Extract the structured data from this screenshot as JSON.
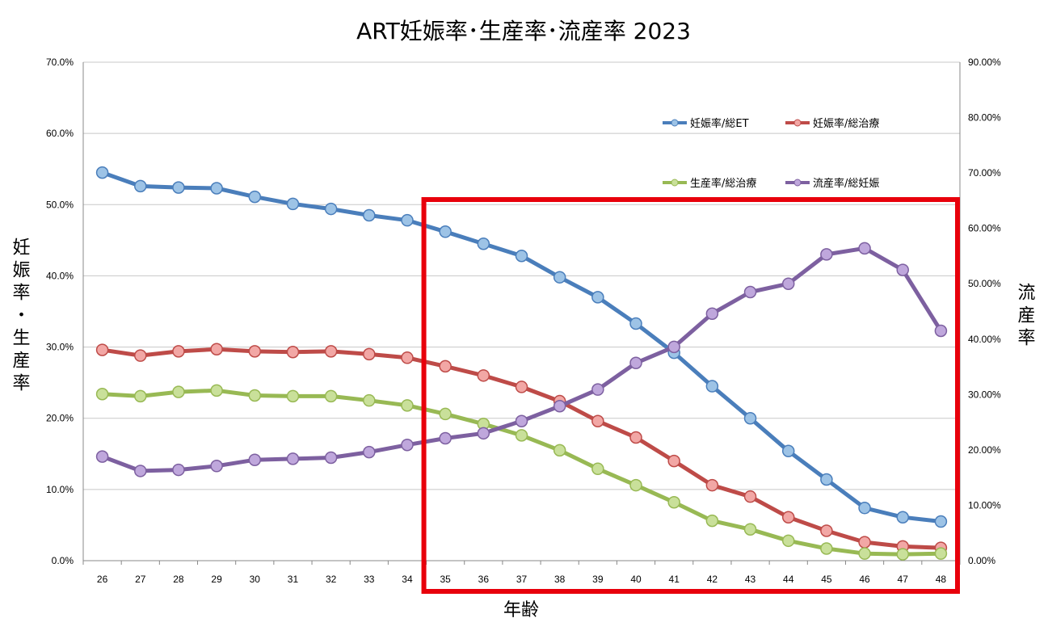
{
  "chart_data": {
    "type": "line",
    "title": "ART妊娠率･生産率･流産率 2023",
    "xlabel": "年齢",
    "ylabel_left": "妊娠率・生産率",
    "ylabel_right": "流産率",
    "x": [
      26,
      27,
      28,
      29,
      30,
      31,
      32,
      33,
      34,
      35,
      36,
      37,
      38,
      39,
      40,
      41,
      42,
      43,
      44,
      45,
      46,
      47,
      48
    ],
    "y_left_ticks": [
      "0.0%",
      "10.0%",
      "20.0%",
      "30.0%",
      "40.0%",
      "50.0%",
      "60.0%",
      "70.0%"
    ],
    "y_right_ticks": [
      "0.00%",
      "10.00%",
      "20.00%",
      "30.00%",
      "40.00%",
      "50.00%",
      "60.00%",
      "70.00%",
      "80.00%",
      "90.00%"
    ],
    "ylim_left": [
      0,
      70
    ],
    "ylim_right": [
      0,
      90
    ],
    "grid": true,
    "legend_position": "top-right",
    "highlight_range": [
      35,
      48
    ],
    "highlight_color": "#e8000b",
    "series": [
      {
        "name": "妊娠率/総ET",
        "axis": "left",
        "color": "#4a7ebb",
        "fill": "#9dc3e6",
        "values": [
          54.5,
          52.6,
          52.4,
          52.3,
          51.1,
          50.1,
          49.4,
          48.5,
          47.8,
          46.2,
          44.5,
          42.8,
          39.8,
          37.0,
          33.3,
          29.2,
          24.5,
          20.0,
          15.4,
          11.4,
          7.4,
          6.1,
          5.5
        ]
      },
      {
        "name": "妊娠率/総治療",
        "axis": "left",
        "color": "#be4b48",
        "fill": "#f2a7a5",
        "values": [
          29.6,
          28.8,
          29.4,
          29.7,
          29.4,
          29.3,
          29.4,
          29.0,
          28.5,
          27.3,
          26.0,
          24.4,
          22.4,
          19.6,
          17.3,
          14.0,
          10.6,
          9.0,
          6.1,
          4.2,
          2.6,
          2.0,
          1.8
        ]
      },
      {
        "name": "生産率/総治療",
        "axis": "left",
        "color": "#98b954",
        "fill": "#c9e09a",
        "values": [
          23.4,
          23.1,
          23.7,
          23.9,
          23.2,
          23.1,
          23.1,
          22.5,
          21.8,
          20.6,
          19.2,
          17.6,
          15.5,
          12.9,
          10.6,
          8.2,
          5.6,
          4.4,
          2.8,
          1.7,
          1.0,
          0.9,
          1.0
        ]
      },
      {
        "name": "流産率/総妊娠",
        "axis": "right",
        "color": "#7d60a0",
        "fill": "#bfa7dc",
        "values": [
          18.8,
          16.2,
          16.4,
          17.1,
          18.2,
          18.4,
          18.6,
          19.6,
          20.9,
          22.1,
          23.0,
          25.2,
          27.9,
          30.9,
          35.7,
          38.6,
          44.6,
          48.5,
          50.0,
          55.3,
          56.4,
          52.5,
          41.5
        ]
      }
    ]
  }
}
